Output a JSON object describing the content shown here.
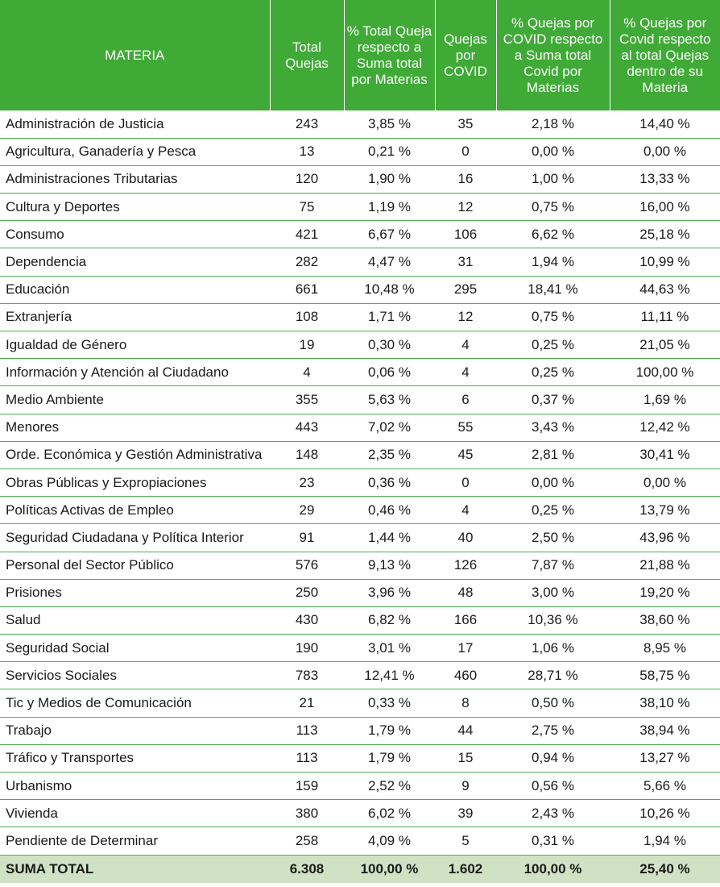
{
  "headers": {
    "materia": "MATERIA",
    "total_quejas": "Total Quejas",
    "pct_total": "% Total Queja respecto a Suma total por Materias",
    "quejas_covid": "Quejas por COVID",
    "pct_covid_suma": "% Quejas por COVID respecto a Suma total Covid por Materias",
    "pct_covid_materia": "% Quejas por Covid respecto al total Quejas dentro de su Materia"
  },
  "rows": [
    {
      "materia": "Administración de Justicia",
      "total": "243",
      "pct_total": "3,85 %",
      "covid": "35",
      "pct_covid": "2,18 %",
      "pct_materia": "14,40 %"
    },
    {
      "materia": "Agricultura, Ganadería y Pesca",
      "total": "13",
      "pct_total": "0,21 %",
      "covid": "0",
      "pct_covid": "0,00 %",
      "pct_materia": "0,00 %"
    },
    {
      "materia": "Administraciones Tributarias",
      "total": "120",
      "pct_total": "1,90 %",
      "covid": "16",
      "pct_covid": "1,00 %",
      "pct_materia": "13,33 %"
    },
    {
      "materia": "Cultura y Deportes",
      "total": "75",
      "pct_total": "1,19 %",
      "covid": "12",
      "pct_covid": "0,75 %",
      "pct_materia": "16,00 %"
    },
    {
      "materia": "Consumo",
      "total": "421",
      "pct_total": "6,67 %",
      "covid": "106",
      "pct_covid": "6,62 %",
      "pct_materia": "25,18 %"
    },
    {
      "materia": "Dependencia",
      "total": "282",
      "pct_total": "4,47 %",
      "covid": "31",
      "pct_covid": "1,94 %",
      "pct_materia": "10,99 %"
    },
    {
      "materia": "Educación",
      "total": "661",
      "pct_total": "10,48 %",
      "covid": "295",
      "pct_covid": "18,41 %",
      "pct_materia": "44,63 %"
    },
    {
      "materia": "Extranjería",
      "total": "108",
      "pct_total": "1,71 %",
      "covid": "12",
      "pct_covid": "0,75 %",
      "pct_materia": "11,11 %"
    },
    {
      "materia": "Igualdad de Género",
      "total": "19",
      "pct_total": "0,30 %",
      "covid": "4",
      "pct_covid": "0,25 %",
      "pct_materia": "21,05 %"
    },
    {
      "materia": "Información y Atención al Ciudadano",
      "total": "4",
      "pct_total": "0,06 %",
      "covid": "4",
      "pct_covid": "0,25 %",
      "pct_materia": "100,00 %"
    },
    {
      "materia": "Medio Ambiente",
      "total": "355",
      "pct_total": "5,63 %",
      "covid": "6",
      "pct_covid": "0,37 %",
      "pct_materia": "1,69 %"
    },
    {
      "materia": "Menores",
      "total": "443",
      "pct_total": "7,02 %",
      "covid": "55",
      "pct_covid": "3,43 %",
      "pct_materia": "12,42 %"
    },
    {
      "materia": "Orde. Económica y Gestión Administrativa",
      "total": "148",
      "pct_total": "2,35 %",
      "covid": "45",
      "pct_covid": "2,81 %",
      "pct_materia": "30,41 %"
    },
    {
      "materia": "Obras Públicas y Expropiaciones",
      "total": "23",
      "pct_total": "0,36 %",
      "covid": "0",
      "pct_covid": "0,00 %",
      "pct_materia": "0,00 %"
    },
    {
      "materia": "Políticas Activas de Empleo",
      "total": "29",
      "pct_total": "0,46 %",
      "covid": "4",
      "pct_covid": "0,25 %",
      "pct_materia": "13,79 %"
    },
    {
      "materia": "Seguridad Ciudadana y Política Interior",
      "total": "91",
      "pct_total": "1,44 %",
      "covid": "40",
      "pct_covid": "2,50 %",
      "pct_materia": "43,96 %"
    },
    {
      "materia": "Personal del Sector Público",
      "total": "576",
      "pct_total": "9,13 %",
      "covid": "126",
      "pct_covid": "7,87 %",
      "pct_materia": "21,88 %"
    },
    {
      "materia": "Prisiones",
      "total": "250",
      "pct_total": "3,96 %",
      "covid": "48",
      "pct_covid": "3,00 %",
      "pct_materia": "19,20 %"
    },
    {
      "materia": "Salud",
      "total": "430",
      "pct_total": "6,82 %",
      "covid": "166",
      "pct_covid": "10,36 %",
      "pct_materia": "38,60 %"
    },
    {
      "materia": "Seguridad Social",
      "total": "190",
      "pct_total": "3,01 %",
      "covid": "17",
      "pct_covid": "1,06 %",
      "pct_materia": "8,95 %"
    },
    {
      "materia": "Servicios Sociales",
      "total": "783",
      "pct_total": "12,41 %",
      "covid": "460",
      "pct_covid": "28,71 %",
      "pct_materia": "58,75 %"
    },
    {
      "materia": "Tic y Medios de Comunicación",
      "total": "21",
      "pct_total": "0,33 %",
      "covid": "8",
      "pct_covid": "0,50 %",
      "pct_materia": "38,10 %"
    },
    {
      "materia": "Trabajo",
      "total": "113",
      "pct_total": "1,79 %",
      "covid": "44",
      "pct_covid": "2,75 %",
      "pct_materia": "38,94 %"
    },
    {
      "materia": "Tráfico y Transportes",
      "total": "113",
      "pct_total": "1,79 %",
      "covid": "15",
      "pct_covid": "0,94 %",
      "pct_materia": "13,27 %"
    },
    {
      "materia": "Urbanismo",
      "total": "159",
      "pct_total": "2,52 %",
      "covid": "9",
      "pct_covid": "0,56 %",
      "pct_materia": "5,66 %"
    },
    {
      "materia": "Vivienda",
      "total": "380",
      "pct_total": "6,02 %",
      "covid": "39",
      "pct_covid": "2,43 %",
      "pct_materia": "10,26 %"
    },
    {
      "materia": "Pendiente de Determinar",
      "total": "258",
      "pct_total": "4,09 %",
      "covid": "5",
      "pct_covid": "0,31 %",
      "pct_materia": "1,94 %"
    }
  ],
  "totals": {
    "label": "SUMA TOTAL",
    "total": "6.308",
    "pct_total": "100,00 %",
    "covid": "1.602",
    "pct_covid": "100,00 %",
    "pct_materia": "25,40 %"
  },
  "colors": {
    "header_bg": "#3faa36",
    "row_border": "#4caf50",
    "total_bg": "#cfe3c4"
  }
}
